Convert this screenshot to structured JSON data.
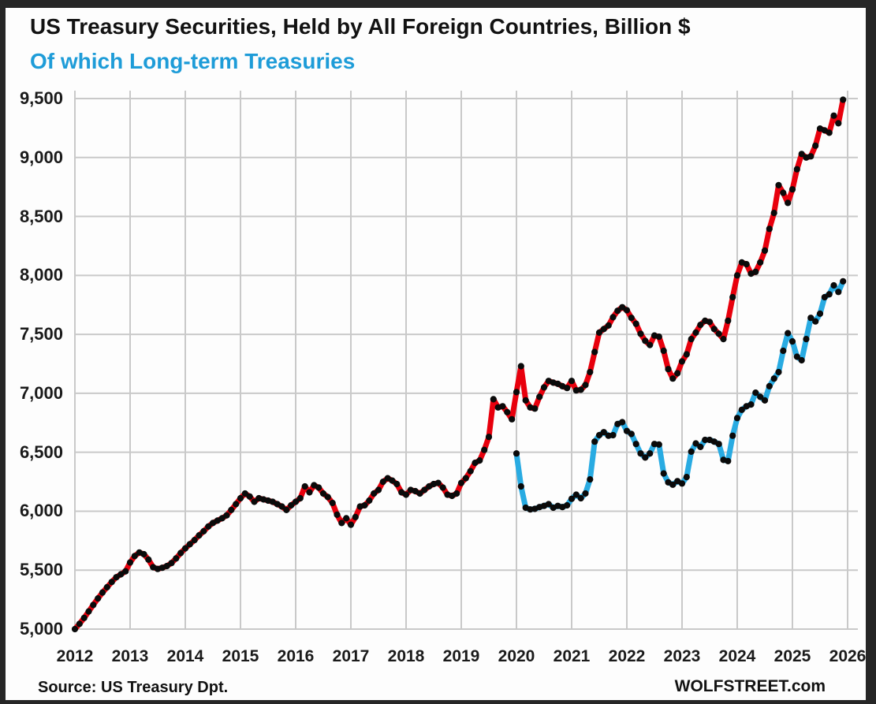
{
  "header": {
    "title": "US Treasury Securities, Held by All Foreign Countries, Billion $",
    "subtitle": "Of which Long-term Treasuries"
  },
  "footer": {
    "source": "Source: US Treasury  Dpt.",
    "watermark": "WOLFSTREET.com"
  },
  "colors": {
    "total_series": "#e8000d",
    "longterm_series": "#29abe2",
    "subtitle_text": "#1e9cd8",
    "gridline": "#c9c9c9",
    "marker": "#0a0a0a",
    "frame": "#262626",
    "background": "#fdfdfd"
  },
  "chart_data": {
    "type": "line",
    "title": "US Treasury Securities, Held by All Foreign Countries, Billion $",
    "subtitle_as_legend": "Of which Long-term Treasuries",
    "grid": true,
    "legend_position": "none (colored subtitle acts as legend)",
    "ylim": [
      5000,
      9500
    ],
    "y_tick_step": 500,
    "y_ticks": [
      {
        "value": 5000,
        "label": "5,000"
      },
      {
        "value": 5500,
        "label": "5,500"
      },
      {
        "value": 6000,
        "label": "6,000"
      },
      {
        "value": 6500,
        "label": "6,500"
      },
      {
        "value": 7000,
        "label": "7,000"
      },
      {
        "value": 7500,
        "label": "7,500"
      },
      {
        "value": 8000,
        "label": "8,000"
      },
      {
        "value": 8500,
        "label": "8,500"
      },
      {
        "value": 9000,
        "label": "9,000"
      },
      {
        "value": 9500,
        "label": "9,500"
      }
    ],
    "x_tick_labels": [
      "2012",
      "2013",
      "2014",
      "2015",
      "2016",
      "2017",
      "2018",
      "2019",
      "2020",
      "2021",
      "2022",
      "2023",
      "2024",
      "2025",
      "2026"
    ],
    "x_unit": "monthly",
    "series": [
      {
        "name": "US Treasury Securities, Held by All Foreign Countries, Billion $",
        "color": "#e8000d",
        "start": "2012-01",
        "start_month_index": 0,
        "values": [
          5000,
          5045,
          5095,
          5150,
          5205,
          5260,
          5310,
          5355,
          5400,
          5440,
          5465,
          5490,
          5565,
          5620,
          5650,
          5635,
          5590,
          5525,
          5510,
          5520,
          5535,
          5560,
          5600,
          5645,
          5685,
          5720,
          5755,
          5795,
          5830,
          5870,
          5900,
          5920,
          5940,
          5965,
          6010,
          6060,
          6110,
          6150,
          6125,
          6080,
          6110,
          6100,
          6090,
          6080,
          6060,
          6040,
          6010,
          6050,
          6080,
          6110,
          6210,
          6160,
          6220,
          6200,
          6150,
          6120,
          6070,
          5970,
          5900,
          5940,
          5885,
          5950,
          6040,
          6050,
          6090,
          6150,
          6180,
          6250,
          6280,
          6260,
          6230,
          6160,
          6140,
          6180,
          6170,
          6150,
          6180,
          6210,
          6230,
          6240,
          6200,
          6140,
          6130,
          6150,
          6240,
          6280,
          6340,
          6410,
          6430,
          6520,
          6630,
          6950,
          6880,
          6890,
          6840,
          6780,
          7010,
          7230,
          6940,
          6880,
          6870,
          6970,
          7050,
          7105,
          7090,
          7080,
          7060,
          7045,
          7105,
          7025,
          7030,
          7070,
          7180,
          7350,
          7515,
          7545,
          7575,
          7645,
          7700,
          7730,
          7705,
          7640,
          7590,
          7505,
          7445,
          7410,
          7490,
          7480,
          7360,
          7205,
          7125,
          7170,
          7270,
          7330,
          7460,
          7515,
          7580,
          7615,
          7605,
          7545,
          7505,
          7460,
          7615,
          7815,
          8000,
          8110,
          8095,
          8015,
          8030,
          8110,
          8210,
          8395,
          8530,
          8765,
          8700,
          8615,
          8730,
          8900,
          9030,
          9000,
          9010,
          9100,
          9245,
          9230,
          9210,
          9355,
          9290,
          9490
        ]
      },
      {
        "name": "Of which Long-term Treasuries",
        "color": "#29abe2",
        "start": "2020-01",
        "start_month_index": 96,
        "values": [
          6490,
          6210,
          6030,
          6015,
          6020,
          6035,
          6045,
          6060,
          6030,
          6045,
          6035,
          6050,
          6105,
          6140,
          6110,
          6150,
          6270,
          6590,
          6645,
          6670,
          6640,
          6645,
          6740,
          6755,
          6680,
          6655,
          6570,
          6490,
          6455,
          6490,
          6570,
          6565,
          6320,
          6245,
          6225,
          6255,
          6235,
          6290,
          6505,
          6575,
          6545,
          6605,
          6605,
          6590,
          6570,
          6435,
          6425,
          6640,
          6790,
          6860,
          6890,
          6905,
          7005,
          6970,
          6940,
          7060,
          7125,
          7180,
          7360,
          7510,
          7440,
          7310,
          7280,
          7460,
          7640,
          7610,
          7675,
          7815,
          7840,
          7915,
          7860,
          7950
        ]
      }
    ]
  }
}
